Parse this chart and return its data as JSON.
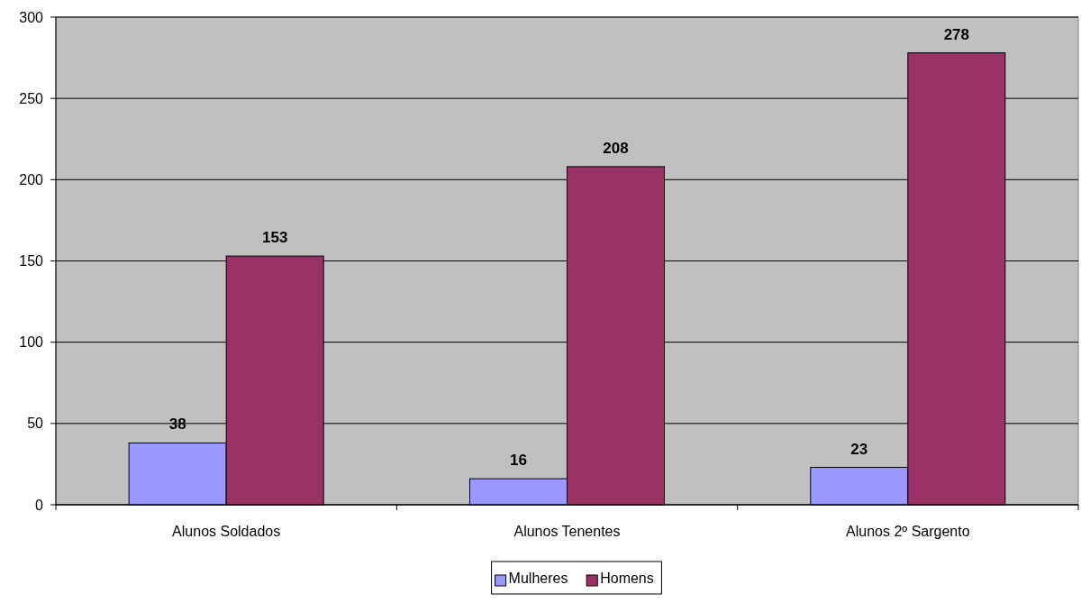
{
  "chart_data": {
    "type": "bar",
    "categories": [
      "Alunos Soldados",
      "Alunos Tenentes",
      "Alunos 2º Sargento"
    ],
    "series": [
      {
        "name": "Mulheres",
        "color": "#9999ff",
        "values": [
          38,
          16,
          23
        ]
      },
      {
        "name": "Homens",
        "color": "#993366",
        "values": [
          153,
          208,
          278
        ]
      }
    ],
    "ylim": [
      0,
      300
    ],
    "yticks": [
      0,
      50,
      100,
      150,
      200,
      250,
      300
    ],
    "grid": "y",
    "legend": "bottom",
    "data_labels": true
  }
}
